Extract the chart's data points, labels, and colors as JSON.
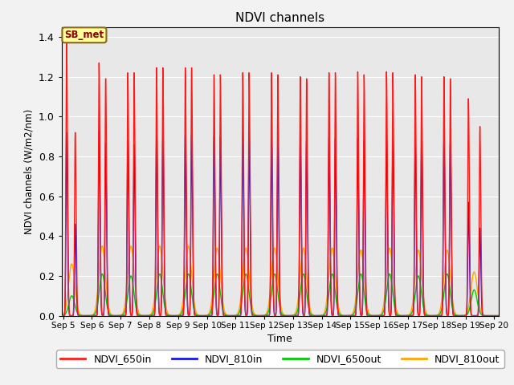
{
  "title": "NDVI channels",
  "ylabel": "NDVI channels (W/m2/nm)",
  "xlabel": "Time",
  "annotation_text": "SB_met",
  "annotation_color": "#8B0000",
  "annotation_bg": "#FFFF99",
  "annotation_border": "#8B6914",
  "ylim": [
    0,
    1.45
  ],
  "xlim_days": [
    4.95,
    20.15
  ],
  "colors": {
    "NDVI_650in": "#FF1A1A",
    "NDVI_810in": "#1515EE",
    "NDVI_650out": "#00CC00",
    "NDVI_810out": "#FFA500"
  },
  "peak_days_650in": [
    5.12,
    5.42,
    6.25,
    6.48,
    7.25,
    7.47,
    8.25,
    8.47,
    9.25,
    9.47,
    10.25,
    10.47,
    11.25,
    11.47,
    12.25,
    12.47,
    13.25,
    13.47,
    14.25,
    14.47,
    15.25,
    15.47,
    16.25,
    16.47,
    17.25,
    17.47,
    18.25,
    18.47,
    19.1,
    19.5
  ],
  "peak_heights_650in": [
    1.38,
    0.92,
    1.27,
    1.19,
    1.22,
    1.22,
    1.245,
    1.245,
    1.245,
    1.245,
    1.21,
    1.21,
    1.22,
    1.22,
    1.22,
    1.21,
    1.2,
    1.19,
    1.22,
    1.22,
    1.225,
    1.21,
    1.225,
    1.22,
    1.21,
    1.2,
    1.2,
    1.19,
    1.09,
    0.95
  ],
  "peak_days_810in": [
    5.12,
    5.42,
    6.25,
    6.48,
    7.25,
    7.47,
    8.25,
    8.47,
    9.25,
    9.47,
    10.25,
    10.47,
    11.25,
    11.47,
    12.25,
    12.47,
    13.25,
    13.47,
    14.25,
    14.47,
    15.25,
    15.47,
    16.25,
    16.47,
    17.25,
    17.47,
    18.25,
    18.47,
    19.1,
    19.5
  ],
  "peak_heights_810in": [
    0.92,
    0.46,
    0.93,
    0.87,
    0.88,
    0.86,
    0.91,
    0.91,
    0.91,
    0.91,
    0.9,
    0.9,
    0.9,
    0.9,
    0.89,
    0.89,
    0.89,
    0.89,
    0.9,
    0.89,
    0.89,
    0.88,
    0.9,
    0.89,
    0.89,
    0.88,
    0.88,
    0.87,
    0.57,
    0.44
  ],
  "peak_days_out": [
    5.3,
    6.36,
    7.36,
    8.36,
    9.36,
    10.36,
    11.36,
    12.36,
    13.36,
    14.36,
    15.36,
    16.36,
    17.36,
    18.36,
    19.3
  ],
  "peak_heights_650out": [
    0.1,
    0.21,
    0.2,
    0.21,
    0.21,
    0.21,
    0.21,
    0.21,
    0.21,
    0.21,
    0.21,
    0.21,
    0.2,
    0.21,
    0.13
  ],
  "peak_heights_810out": [
    0.26,
    0.35,
    0.35,
    0.35,
    0.35,
    0.34,
    0.34,
    0.34,
    0.34,
    0.34,
    0.33,
    0.34,
    0.33,
    0.33,
    0.22
  ],
  "tick_days": [
    5,
    6,
    7,
    8,
    9,
    10,
    11,
    12,
    13,
    14,
    15,
    16,
    17,
    18,
    19,
    20
  ],
  "tick_labels": [
    "Sep 5",
    "Sep 6",
    "Sep 7",
    "Sep 8",
    "Sep 9",
    "Sep 10",
    "Sep 11",
    "Sep 12",
    "Sep 13",
    "Sep 14",
    "Sep 15",
    "Sep 16",
    "Sep 17",
    "Sep 18",
    "Sep 19",
    "Sep 20"
  ],
  "bg_color": "#E8E8E8",
  "grid_color": "#FFFFFF",
  "linewidth": 1.0,
  "legend_labels": [
    "NDVI_650in",
    "NDVI_810in",
    "NDVI_650out",
    "NDVI_810out"
  ]
}
